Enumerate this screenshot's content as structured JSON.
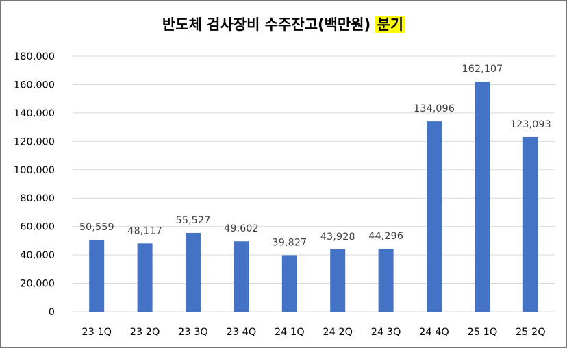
{
  "chart_data": {
    "type": "bar",
    "title": "반도체 검사장비 수주잔고(백만원)",
    "title_highlight": "분기",
    "xlabel": "",
    "ylabel": "",
    "categories": [
      "23 1Q",
      "23 2Q",
      "23 3Q",
      "23 4Q",
      "24 1Q",
      "24 2Q",
      "24 3Q",
      "24 4Q",
      "25 1Q",
      "25 2Q"
    ],
    "values": [
      50559,
      48117,
      55527,
      49602,
      39827,
      43928,
      44296,
      134096,
      162107,
      123093
    ],
    "data_labels": [
      "50,559",
      "48,117",
      "55,527",
      "49,602",
      "39,827",
      "43,928",
      "44,296",
      "134,096",
      "162,107",
      "123,093"
    ],
    "ylim": [
      0,
      180000
    ],
    "yticks": [
      0,
      20000,
      40000,
      60000,
      80000,
      100000,
      120000,
      140000,
      160000,
      180000
    ],
    "ytick_labels": [
      "0",
      "20,000",
      "40,000",
      "60,000",
      "80,000",
      "100,000",
      "120,000",
      "140,000",
      "160,000",
      "180,000"
    ],
    "grid": true,
    "legend": "none",
    "colors": {
      "bar": "#4472c4",
      "grid": "#d9d9d9",
      "highlight": "#ffff00"
    }
  }
}
